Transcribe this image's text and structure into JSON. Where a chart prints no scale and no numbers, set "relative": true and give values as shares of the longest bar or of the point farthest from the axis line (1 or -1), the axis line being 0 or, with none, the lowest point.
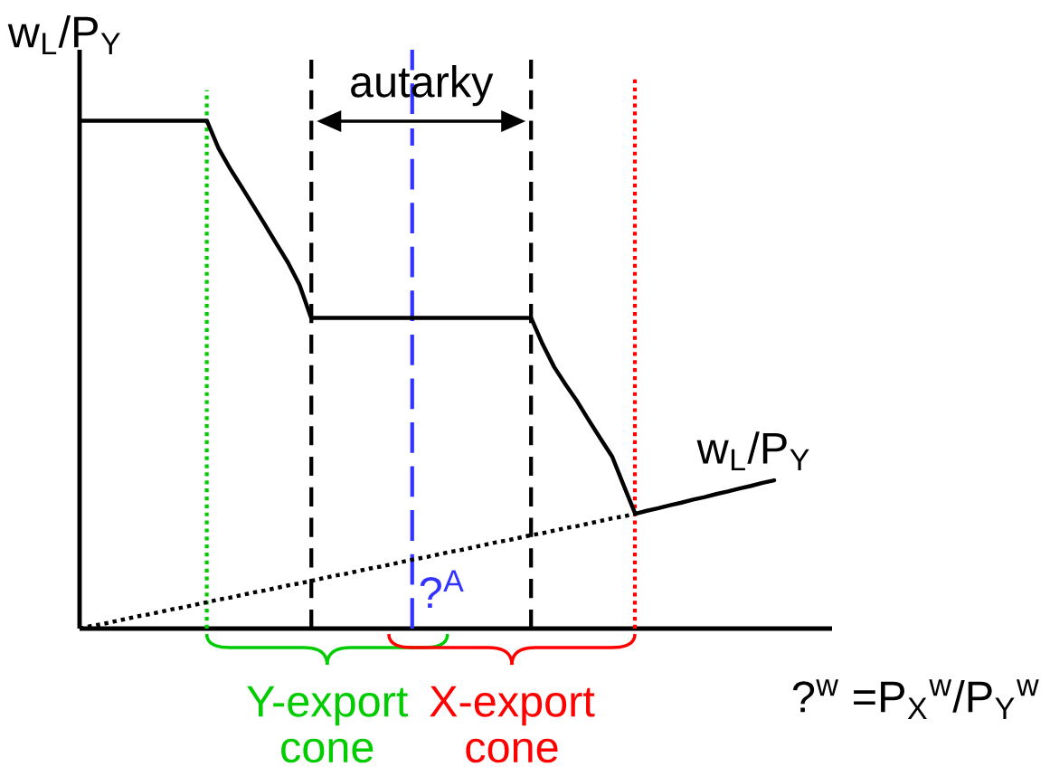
{
  "chart_data": {
    "type": "line",
    "relative": true,
    "xlabel": "?$^{w}$ =P$_{X}$$^{w}$/P$_{Y}$$^{w}$",
    "ylabel": "w$_{L}$/P$_{Y}$",
    "categories": [
      null,
      null,
      null,
      null,
      null,
      null,
      null,
      null,
      null,
      null,
      null,
      null,
      null,
      null,
      null,
      null,
      null,
      null,
      null,
      null,
      null,
      null,
      null,
      null,
      null,
      null,
      null,
      null,
      null,
      null,
      null,
      null,
      null,
      null,
      null,
      null,
      null,
      null,
      null,
      null,
      null,
      null,
      null,
      null,
      null,
      null,
      null,
      null,
      null,
      null,
      null,
      null,
      null,
      null,
      null,
      null,
      null,
      null,
      null,
      null,
      null,
      null,
      null,
      null,
      null,
      null
    ],
    "series": [
      {
        "name": "w$_{L}$/P$_{Y}$",
        "color": "#000000",
        "line_style": "solid",
        "values": [
          1,
          1,
          1,
          1,
          1,
          1,
          1,
          1,
          1,
          1,
          1,
          1,
          0.946,
          0.906,
          0.87,
          0.833,
          0.796,
          0.758,
          0.721,
          0.677,
          0.612,
          0.612,
          0.612,
          0.612,
          0.612,
          0.612,
          0.612,
          0.612,
          0.612,
          0.612,
          0.612,
          0.612,
          0.612,
          0.612,
          0.612,
          0.612,
          0.612,
          0.612,
          0.612,
          0.612,
          0.56,
          0.515,
          0.48,
          0.447,
          0.41,
          0.374,
          0.339,
          0.282,
          0.226,
          0.232,
          0.237,
          0.243,
          0.248,
          0.254,
          0.259,
          0.265,
          0.27,
          0.276,
          0.281,
          0.287,
          0.292,
          null,
          null,
          null,
          null,
          null
        ]
      },
      {
        "color": "#000000",
        "line_style": "dotted",
        "values": [
          0,
          0.005,
          0.009,
          0.014,
          0.019,
          0.024,
          0.028,
          0.033,
          0.038,
          0.042,
          0.047,
          0.052,
          0.057,
          0.061,
          0.066,
          0.071,
          0.075,
          0.08,
          0.085,
          0.089,
          0.094,
          0.099,
          0.104,
          0.108,
          0.113,
          0.118,
          0.122,
          0.127,
          0.132,
          0.137,
          0.141,
          0.146,
          0.151,
          0.155,
          0.16,
          0.165,
          0.17,
          0.174,
          0.179,
          0.184,
          0.188,
          0.193,
          0.198,
          0.202,
          0.207,
          0.212,
          0.217,
          0.221,
          0.226,
          null,
          null,
          null,
          null,
          null,
          null,
          null,
          null,
          null,
          null,
          null,
          null,
          null,
          null,
          null,
          null,
          null
        ]
      }
    ],
    "annotations": [
      "autarky",
      "?$^{A}$",
      "Y-export cone",
      "X-export cone"
    ]
  }
}
